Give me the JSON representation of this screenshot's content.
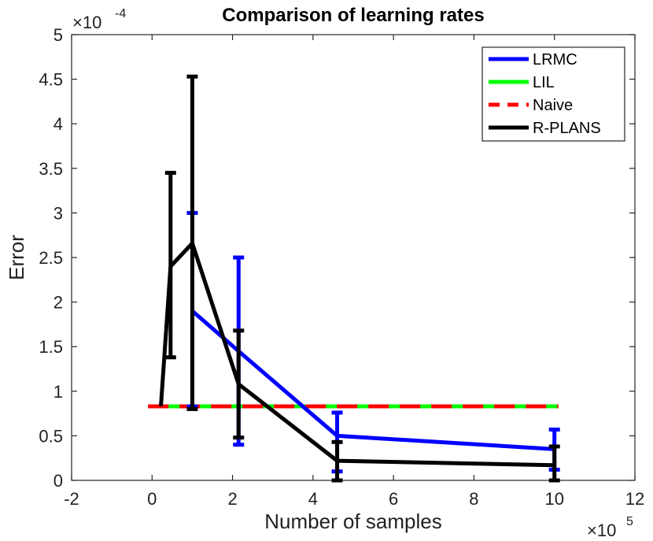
{
  "chart_data": {
    "type": "line",
    "title": "Comparison of learning rates",
    "xlabel": "Number of samples",
    "ylabel": "Error",
    "xlim": [
      -2,
      12
    ],
    "ylim": [
      0,
      5
    ],
    "xticks": [
      -2,
      0,
      2,
      4,
      6,
      8,
      10,
      12
    ],
    "xtick_labels": [
      "-2",
      "0",
      "2",
      "4",
      "6",
      "8",
      "10",
      "12"
    ],
    "yticks": [
      0,
      0.5,
      1,
      1.5,
      2,
      2.5,
      3,
      3.5,
      4,
      4.5,
      5
    ],
    "ytick_labels": [
      "0",
      "0.5",
      "1",
      "1.5",
      "2",
      "2.5",
      "3",
      "3.5",
      "4",
      "4.5",
      "5"
    ],
    "x_exponent": {
      "base": "×10",
      "power": "5"
    },
    "y_exponent": {
      "base": "×10",
      "power": "-4"
    },
    "legend_position": "top-right",
    "series": [
      {
        "name": "LRMC",
        "color": "#0000ff",
        "style": "solid",
        "x": [
          1.0,
          2.15,
          4.6,
          10.0
        ],
        "y": [
          1.9,
          1.45,
          0.5,
          0.35
        ],
        "err_low": [
          0.83,
          0.4,
          0.1,
          0.12
        ],
        "err_high": [
          3.0,
          2.5,
          0.76,
          0.57
        ]
      },
      {
        "name": "LIL",
        "color": "#00ff00",
        "style": "solid",
        "x": [
          -0.1,
          10.1
        ],
        "y": [
          0.83,
          0.83
        ]
      },
      {
        "name": "Naive",
        "color": "#ff0000",
        "style": "dashed",
        "x": [
          -0.1,
          10.1
        ],
        "y": [
          0.83,
          0.83
        ]
      },
      {
        "name": "R-PLANS",
        "color": "#000000",
        "style": "solid",
        "x": [
          0.22,
          0.46,
          1.0,
          2.15,
          4.6,
          10.0
        ],
        "y": [
          0.83,
          2.4,
          2.66,
          1.08,
          0.22,
          0.17
        ],
        "err_low": [
          0.83,
          1.38,
          0.8,
          0.48,
          0.0,
          0.0
        ],
        "err_high": [
          0.83,
          3.45,
          4.53,
          1.68,
          0.43,
          0.38
        ]
      }
    ]
  }
}
